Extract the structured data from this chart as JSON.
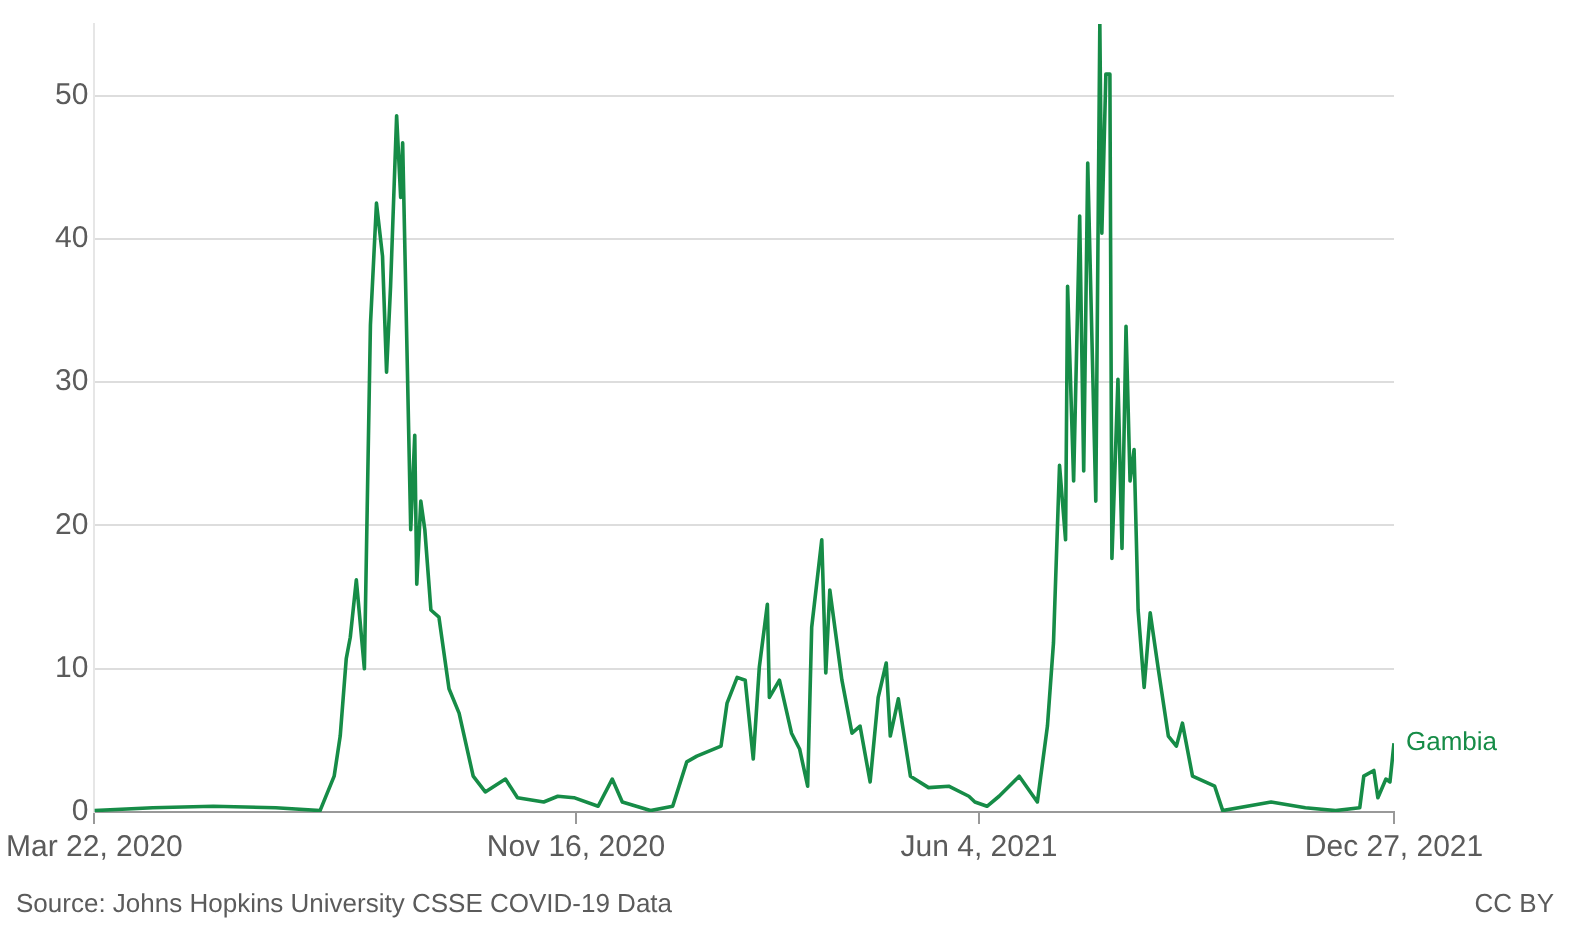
{
  "chart_data": {
    "type": "line",
    "x": [
      "2020-03-22",
      "2020-04-20",
      "2020-05-20",
      "2020-06-20",
      "2020-07-12",
      "2020-07-19",
      "2020-07-22",
      "2020-07-25",
      "2020-07-27",
      "2020-07-30",
      "2020-08-03",
      "2020-08-06",
      "2020-08-09",
      "2020-08-12",
      "2020-08-14",
      "2020-08-16",
      "2020-08-19",
      "2020-08-21",
      "2020-08-22",
      "2020-08-26",
      "2020-08-28",
      "2020-08-29",
      "2020-08-31",
      "2020-09-02",
      "2020-09-05",
      "2020-09-09",
      "2020-09-14",
      "2020-09-19",
      "2020-09-26",
      "2020-10-02",
      "2020-10-12",
      "2020-10-18",
      "2020-10-31",
      "2020-11-07",
      "2020-11-15",
      "2020-11-27",
      "2020-12-04",
      "2020-12-09",
      "2020-12-23",
      "2021-01-03",
      "2021-01-10",
      "2021-01-15",
      "2021-01-27",
      "2021-01-30",
      "2021-02-04",
      "2021-02-08",
      "2021-02-12",
      "2021-02-15",
      "2021-02-19",
      "2021-02-20",
      "2021-02-25",
      "2021-03-03",
      "2021-03-07",
      "2021-03-11",
      "2021-03-13",
      "2021-03-18",
      "2021-03-20",
      "2021-03-22",
      "2021-03-28",
      "2021-04-02",
      "2021-04-06",
      "2021-04-11",
      "2021-04-15",
      "2021-04-19",
      "2021-04-21",
      "2021-04-25",
      "2021-05-01",
      "2021-05-10",
      "2021-05-20",
      "2021-05-30",
      "2021-06-02",
      "2021-06-08",
      "2021-06-14",
      "2021-06-24",
      "2021-07-03",
      "2021-07-08",
      "2021-07-11",
      "2021-07-14",
      "2021-07-17",
      "2021-07-18",
      "2021-07-21",
      "2021-07-24",
      "2021-07-26",
      "2021-07-28",
      "2021-08-01",
      "2021-08-03",
      "2021-08-04",
      "2021-08-06",
      "2021-08-08",
      "2021-08-09",
      "2021-08-12",
      "2021-08-14",
      "2021-08-16",
      "2021-08-18",
      "2021-08-20",
      "2021-08-22",
      "2021-08-25",
      "2021-08-28",
      "2021-09-01",
      "2021-09-06",
      "2021-09-10",
      "2021-09-13",
      "2021-09-18",
      "2021-09-29",
      "2021-10-03",
      "2021-10-27",
      "2021-11-13",
      "2021-11-28",
      "2021-12-10",
      "2021-12-12",
      "2021-12-17",
      "2021-12-19",
      "2021-12-23",
      "2021-12-25",
      "2021-12-27"
    ],
    "series": [
      {
        "name": "Gambia",
        "color": "#168c47",
        "values": [
          0.1,
          0.3,
          0.4,
          0.3,
          0.1,
          2.5,
          5.3,
          10.7,
          12.2,
          16.2,
          10,
          34,
          42.5,
          38.8,
          30.7,
          36.7,
          48.6,
          42.9,
          46.7,
          19.7,
          26.3,
          15.9,
          21.7,
          19.7,
          14.1,
          13.6,
          8.6,
          6.9,
          2.5,
          1.4,
          2.3,
          1,
          0.7,
          1.1,
          1,
          0.4,
          2.3,
          0.7,
          0.1,
          0.4,
          3.5,
          3.9,
          4.6,
          7.6,
          9.4,
          9.2,
          3.7,
          10.1,
          14.5,
          8,
          9.2,
          5.5,
          4.4,
          1.8,
          12.9,
          19,
          9.7,
          15.5,
          9.2,
          5.5,
          6,
          2.1,
          8,
          10.4,
          5.3,
          7.9,
          2.5,
          1.7,
          1.8,
          1.1,
          0.7,
          0.4,
          1.1,
          2.5,
          0.7,
          6,
          11.8,
          24.2,
          19,
          36.7,
          23.1,
          41.6,
          23.8,
          45.3,
          21.7,
          55,
          40.4,
          51.5,
          51.5,
          17.7,
          30.2,
          18.4,
          33.9,
          23.1,
          25.3,
          14.1,
          8.7,
          13.9,
          10,
          5.3,
          4.6,
          6.2,
          2.5,
          1.8,
          0.1,
          0.7,
          0.3,
          0.1,
          0.3,
          2.5,
          2.9,
          1,
          2.3,
          2.1,
          4.8
        ]
      }
    ],
    "xlim": [
      "2020-03-22",
      "2021-12-27"
    ],
    "xticks": [
      {
        "value": "2020-03-22",
        "label": "Mar 22, 2020"
      },
      {
        "value": "2020-11-16",
        "label": "Nov 16, 2020"
      },
      {
        "value": "2021-06-04",
        "label": "Jun 4, 2021"
      },
      {
        "value": "2021-12-27",
        "label": "Dec 27, 2021"
      }
    ],
    "ylim": [
      0,
      55
    ],
    "yticks": [
      0,
      10,
      20,
      30,
      40,
      50
    ],
    "grid": "y",
    "legend": false,
    "annotations": [
      "Source: Johns Hopkins University CSSE COVID-19 Data",
      "CC BY"
    ]
  }
}
